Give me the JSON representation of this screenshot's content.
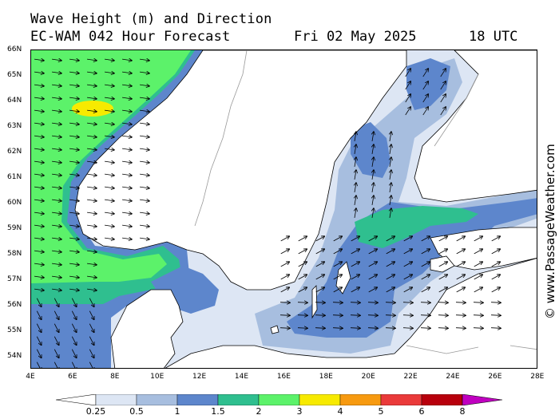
{
  "header": {
    "title_line1": "Wave Height (m) and Direction",
    "title_line2": "EC-WAM 042 Hour Forecast",
    "date": "Fri 02 May 2025",
    "time": "18 UTC"
  },
  "credit": "© www.PassageWeather.com",
  "axes": {
    "lat_labels": [
      "66N",
      "65N",
      "64N",
      "63N",
      "62N",
      "61N",
      "60N",
      "59N",
      "58N",
      "57N",
      "56N",
      "55N",
      "54N"
    ],
    "lon_labels": [
      "4E",
      "6E",
      "8E",
      "10E",
      "12E",
      "14E",
      "16E",
      "18E",
      "20E",
      "22E",
      "24E",
      "26E",
      "28E"
    ]
  },
  "legend": {
    "labels": [
      "0.25",
      "0.5",
      "1",
      "1.5",
      "2",
      "3",
      "4",
      "5",
      "6",
      "8"
    ],
    "colors": [
      "#ffffff",
      "#dde6f4",
      "#a7bedf",
      "#5d86cc",
      "#2fbf8f",
      "#5cf26a",
      "#f7ea00",
      "#f79a10",
      "#ea3a3a",
      "#b8000c",
      "#c000c0"
    ]
  },
  "map_colors": {
    "land": "#ffffff",
    "coast": "#000000",
    "border": "#999999"
  }
}
